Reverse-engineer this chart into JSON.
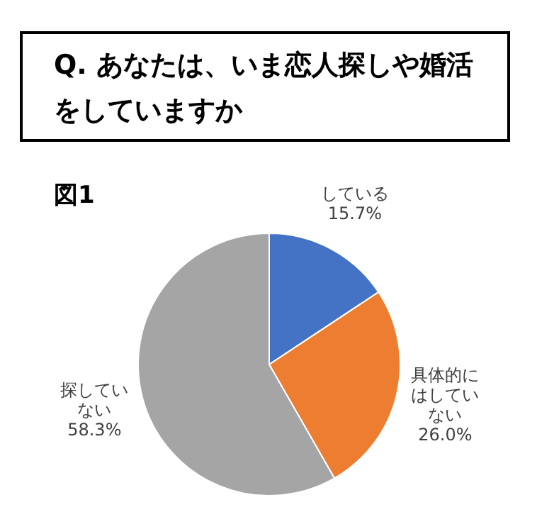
{
  "chart_data": {
    "type": "pie",
    "title": "Q. あなたは、いま恋人探しや婚活をしていますか",
    "subtitle": "図1",
    "categories": [
      "している",
      "具体的にはしていない",
      "探していない"
    ],
    "values": [
      15.7,
      26.0,
      58.3
    ],
    "colors": [
      "#4472c4",
      "#ed7d31",
      "#a5a5a5"
    ],
    "value_labels": [
      "15.7%",
      "26.0%",
      "58.3%"
    ],
    "legend": false
  }
}
